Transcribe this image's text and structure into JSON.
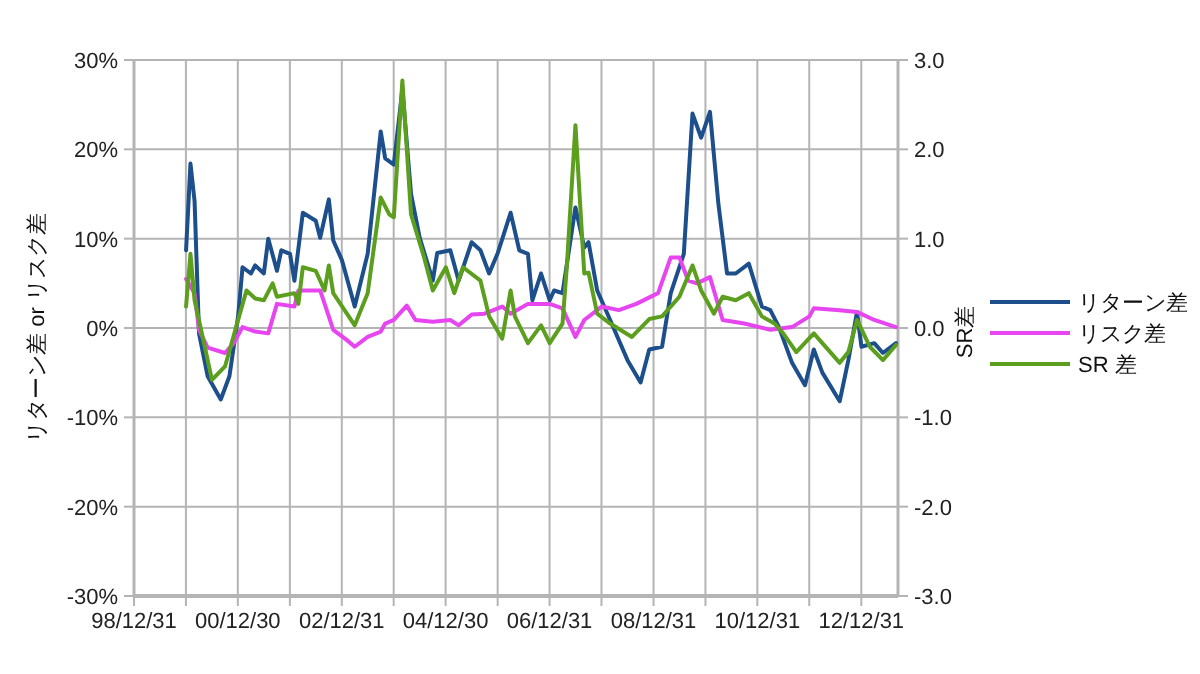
{
  "chart_data": {
    "type": "line",
    "xlabel": null,
    "ylabel": "リターン差 or リスク差",
    "y2label": "SR差",
    "xlim": [
      "1998-12-31",
      "2013-09-15"
    ],
    "xticks": [
      {
        "value": "1998-12-31",
        "label": "98/12/31"
      },
      {
        "value": "1999-12-31",
        "label": null
      },
      {
        "value": "2000-12-30",
        "label": "00/12/30"
      },
      {
        "value": "2001-12-31",
        "label": null
      },
      {
        "value": "2002-12-31",
        "label": "02/12/31"
      },
      {
        "value": "2003-12-31",
        "label": null
      },
      {
        "value": "2004-12-30",
        "label": "04/12/30"
      },
      {
        "value": "2005-12-31",
        "label": null
      },
      {
        "value": "2006-12-31",
        "label": "06/12/31"
      },
      {
        "value": "2007-12-31",
        "label": null
      },
      {
        "value": "2008-12-31",
        "label": "08/12/31"
      },
      {
        "value": "2009-12-31",
        "label": null
      },
      {
        "value": "2010-12-31",
        "label": "10/12/31"
      },
      {
        "value": "2011-12-31",
        "label": null
      },
      {
        "value": "2012-12-31",
        "label": "12/12/31"
      }
    ],
    "ylim": [
      -30,
      30
    ],
    "yticks": [
      {
        "value": -30,
        "label": "-30%"
      },
      {
        "value": -20,
        "label": "-20%"
      },
      {
        "value": -10,
        "label": "-10%"
      },
      {
        "value": 0,
        "label": "0%"
      },
      {
        "value": 10,
        "label": "10%"
      },
      {
        "value": 20,
        "label": "20%"
      },
      {
        "value": 30,
        "label": "30%"
      }
    ],
    "y2lim": [
      -3,
      3
    ],
    "y2ticks": [
      {
        "value": -3,
        "label": "-3.0"
      },
      {
        "value": -2,
        "label": "-2.0"
      },
      {
        "value": -1,
        "label": "-1.0"
      },
      {
        "value": 0,
        "label": "0.0"
      },
      {
        "value": 1,
        "label": "1.0"
      },
      {
        "value": 2,
        "label": "2.0"
      },
      {
        "value": 3,
        "label": "3.0"
      }
    ],
    "grid": true,
    "legend": "right",
    "line_style": "solid",
    "series": [
      {
        "name": "リターン差",
        "color": "#1c4f8c",
        "x": [
          "2000-01",
          "2000-02",
          "2000-03",
          "2000-04",
          "2000-06",
          "2000-09",
          "2000-11",
          "2001-01",
          "2001-02",
          "2001-04",
          "2001-05",
          "2001-07",
          "2001-08",
          "2001-10",
          "2001-11",
          "2002-01",
          "2002-02",
          "2002-04",
          "2002-07",
          "2002-08",
          "2002-10",
          "2002-11",
          "2003-01",
          "2003-04",
          "2003-07",
          "2003-10",
          "2003-11",
          "2004-01",
          "2004-03",
          "2004-05",
          "2004-07",
          "2004-10",
          "2004-11",
          "2005-02",
          "2005-04",
          "2005-07",
          "2005-09",
          "2005-11",
          "2006-01",
          "2006-04",
          "2006-06",
          "2006-08",
          "2006-09",
          "2006-11",
          "2007-01",
          "2007-02",
          "2007-04",
          "2007-07",
          "2007-09",
          "2007-10",
          "2007-12",
          "2008-03",
          "2008-07",
          "2008-10",
          "2008-12",
          "2009-03",
          "2009-05",
          "2009-08",
          "2009-10",
          "2009-12",
          "2010-02",
          "2010-04",
          "2010-06",
          "2010-08",
          "2010-11",
          "2011-02",
          "2011-04",
          "2011-06",
          "2011-09",
          "2011-12",
          "2012-02",
          "2012-04",
          "2012-08",
          "2012-10",
          "2012-12",
          "2013-01",
          "2013-04",
          "2013-06",
          "2013-09"
        ],
        "values": [
          8.7,
          18.4,
          14.2,
          -0.6,
          -5.4,
          -8.0,
          -5.4,
          1.3,
          6.8,
          6.1,
          7.0,
          6.1,
          10.0,
          6.4,
          8.7,
          8.3,
          5.3,
          12.9,
          12.0,
          10.1,
          14.4,
          9.8,
          7.6,
          2.4,
          8.3,
          22.0,
          19.0,
          18.3,
          26.7,
          15.0,
          10.1,
          5.3,
          8.4,
          8.7,
          5.3,
          9.6,
          8.7,
          6.1,
          8.4,
          12.9,
          8.7,
          8.3,
          3.1,
          6.1,
          3.1,
          4.2,
          3.9,
          13.5,
          9.0,
          9.6,
          4.2,
          0.9,
          -3.6,
          -6.1,
          -2.4,
          -2.1,
          3.9,
          8.3,
          24.0,
          21.3,
          24.2,
          13.9,
          6.1,
          6.1,
          7.2,
          2.4,
          2.0,
          0.1,
          -3.9,
          -6.4,
          -2.4,
          -5.0,
          -8.2,
          -3.6,
          1.8,
          -2.1,
          -1.7,
          -2.8,
          -1.7
        ]
      },
      {
        "name": "リスク差",
        "color": "#e645f0",
        "x": [
          "2000-01",
          "2000-03",
          "2000-04",
          "2000-06",
          "2000-10",
          "2000-12",
          "2001-02",
          "2001-05",
          "2001-08",
          "2001-10",
          "2002-02",
          "2002-03",
          "2002-08",
          "2002-11",
          "2003-02",
          "2003-04",
          "2003-07",
          "2003-10",
          "2003-11",
          "2004-01",
          "2004-04",
          "2004-06",
          "2004-10",
          "2005-02",
          "2005-04",
          "2005-07",
          "2005-10",
          "2006-02",
          "2006-04",
          "2006-08",
          "2007-01",
          "2007-04",
          "2007-07",
          "2007-09",
          "2008-01",
          "2008-05",
          "2008-09",
          "2009-02",
          "2009-05",
          "2009-07",
          "2009-09",
          "2009-11",
          "2010-02",
          "2010-05",
          "2010-10",
          "2011-04",
          "2011-09",
          "2012-01",
          "2012-02",
          "2012-08",
          "2012-12",
          "2013-04",
          "2013-09"
        ],
        "values": [
          5.5,
          3.9,
          -0.2,
          -2.2,
          -2.8,
          -1.7,
          0.1,
          -0.4,
          -0.6,
          2.7,
          2.4,
          4.2,
          4.2,
          -0.2,
          -1.3,
          -2.1,
          -1.0,
          -0.4,
          0.5,
          0.9,
          2.5,
          0.9,
          0.7,
          0.9,
          0.3,
          1.5,
          1.6,
          2.4,
          1.6,
          2.7,
          2.7,
          2.2,
          -1.0,
          0.9,
          2.4,
          2.0,
          2.7,
          3.9,
          7.9,
          7.9,
          5.3,
          5.0,
          5.7,
          0.9,
          0.5,
          -0.2,
          0.1,
          1.3,
          2.2,
          2.0,
          1.8,
          0.9,
          0.1
        ]
      },
      {
        "name": "SR 差",
        "color": "#5c9e1e",
        "axis": "y2",
        "x": [
          "2000-01",
          "2000-02",
          "2000-03",
          "2000-05",
          "2000-07",
          "2000-10",
          "2001-01",
          "2001-03",
          "2001-05",
          "2001-07",
          "2001-09",
          "2001-10",
          "2002-02",
          "2002-03",
          "2002-04",
          "2002-07",
          "2002-09",
          "2002-10",
          "2002-11",
          "2003-04",
          "2003-07",
          "2003-10",
          "2003-12",
          "2004-01",
          "2004-03",
          "2004-05",
          "2004-08",
          "2004-10",
          "2005-01",
          "2005-03",
          "2005-05",
          "2005-09",
          "2005-11",
          "2006-02",
          "2006-04",
          "2006-05",
          "2006-08",
          "2006-11",
          "2007-01",
          "2007-04",
          "2007-05",
          "2007-07",
          "2007-09",
          "2007-10",
          "2007-12",
          "2008-03",
          "2008-08",
          "2008-12",
          "2009-03",
          "2009-07",
          "2009-10",
          "2009-12",
          "2010-03",
          "2010-05",
          "2010-08",
          "2010-11",
          "2011-02",
          "2011-05",
          "2011-07",
          "2011-10",
          "2012-02",
          "2012-04",
          "2012-08",
          "2012-10",
          "2012-12",
          "2013-03",
          "2013-06",
          "2013-09"
        ],
        "values": [
          0.24,
          0.83,
          0.31,
          -0.13,
          -0.58,
          -0.43,
          0.09,
          0.42,
          0.33,
          0.31,
          0.5,
          0.35,
          0.39,
          0.27,
          0.68,
          0.64,
          0.42,
          0.7,
          0.39,
          0.03,
          0.39,
          1.46,
          1.27,
          1.24,
          2.77,
          1.27,
          0.79,
          0.42,
          0.68,
          0.39,
          0.68,
          0.53,
          0.13,
          -0.12,
          0.42,
          0.13,
          -0.17,
          0.03,
          -0.17,
          0.05,
          0.68,
          2.27,
          0.61,
          0.62,
          0.16,
          0.05,
          -0.1,
          0.1,
          0.13,
          0.35,
          0.7,
          0.42,
          0.16,
          0.35,
          0.31,
          0.39,
          0.13,
          0.05,
          -0.06,
          -0.27,
          -0.06,
          -0.17,
          -0.39,
          -0.27,
          0.09,
          -0.21,
          -0.36,
          -0.19
        ]
      }
    ]
  }
}
